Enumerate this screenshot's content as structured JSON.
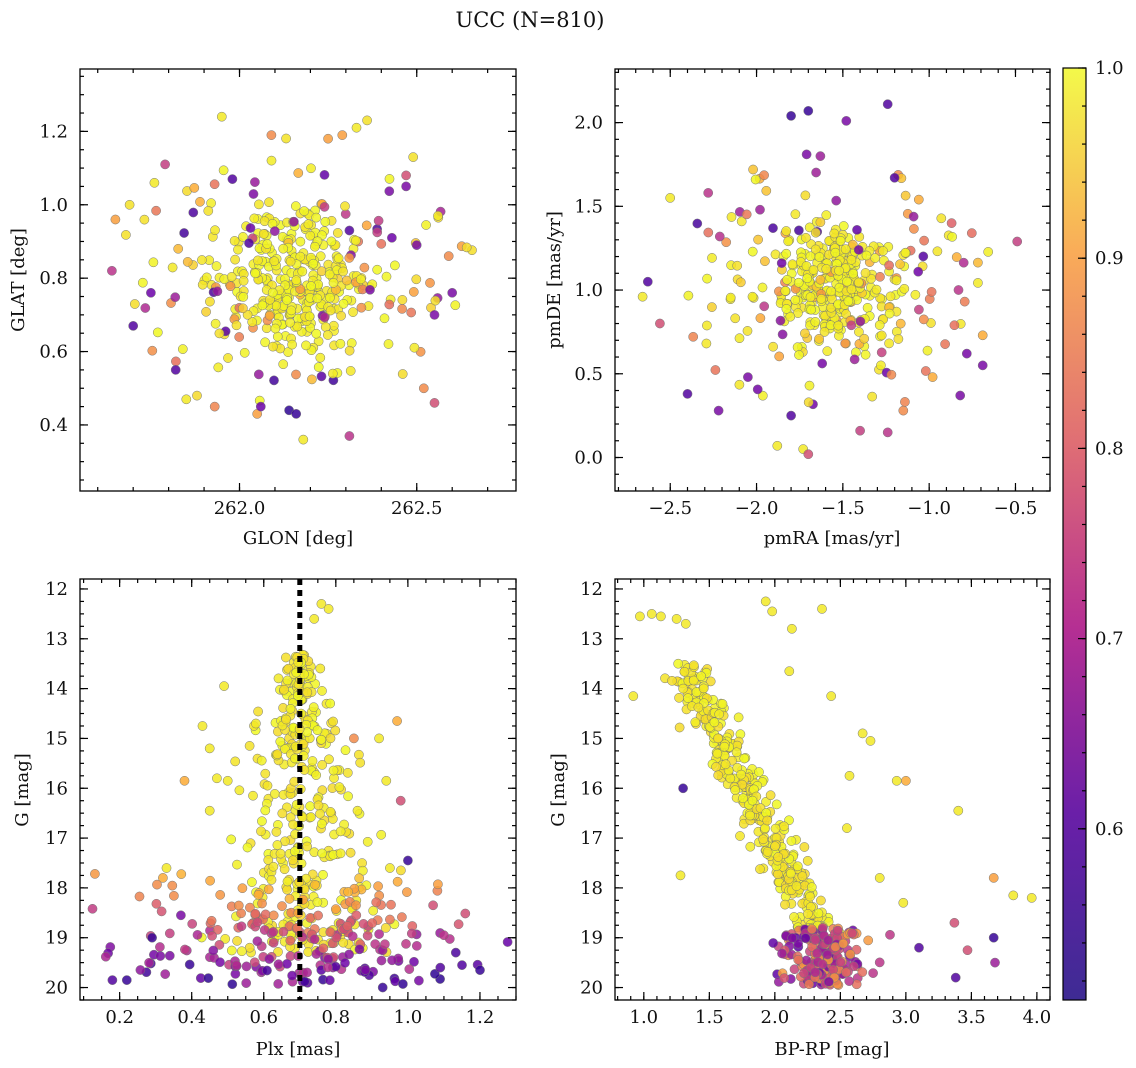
{
  "title": "UCC (N=810)",
  "colors": {
    "colormap": [
      "#0d0887",
      "#6a00a8",
      "#b12a90",
      "#e16462",
      "#fca636",
      "#f0f921"
    ],
    "marker_edge": "#777777",
    "vline": "#000000"
  },
  "chart_data": [
    {
      "type": "scatter",
      "id": "glon-glat",
      "xlabel": "GLON [deg]",
      "ylabel": "GLAT [deg]",
      "xlim": [
        261.55,
        262.78
      ],
      "ylim": [
        0.22,
        1.37
      ],
      "xticks": [
        {
          "v": 262.0,
          "label": "262.0"
        },
        {
          "v": 262.5,
          "label": "262.5"
        }
      ],
      "yticks": [
        {
          "v": 0.4,
          "label": "0.4"
        },
        {
          "v": 0.6,
          "label": "0.6"
        },
        {
          "v": 0.8,
          "label": "0.8"
        },
        {
          "v": 1.0,
          "label": "1.0"
        },
        {
          "v": 1.2,
          "label": "1.2"
        }
      ],
      "minor_x": 0.1,
      "minor_y": 0.05,
      "invert_y": false,
      "outliers": [
        [
          261.95,
          1.24,
          0.98
        ],
        [
          262.09,
          1.19,
          0.85
        ],
        [
          262.25,
          1.18,
          0.88
        ],
        [
          262.33,
          1.21,
          0.98
        ],
        [
          262.36,
          1.23,
          0.97
        ],
        [
          262.29,
          1.19,
          0.88
        ],
        [
          261.79,
          1.11,
          0.72
        ],
        [
          261.69,
          1.0,
          0.97
        ],
        [
          261.76,
          1.06,
          0.98
        ],
        [
          261.65,
          0.96,
          0.88
        ],
        [
          261.75,
          0.76,
          0.58
        ],
        [
          261.7,
          0.67,
          0.55
        ],
        [
          261.64,
          0.82,
          0.7
        ],
        [
          261.85,
          0.47,
          0.98
        ],
        [
          261.88,
          0.48,
          0.96
        ],
        [
          261.93,
          0.45,
          0.84
        ],
        [
          262.05,
          0.43,
          0.88
        ],
        [
          262.14,
          0.44,
          0.5
        ],
        [
          262.16,
          0.43,
          0.52
        ],
        [
          262.18,
          0.36,
          0.98
        ],
        [
          262.31,
          0.37,
          0.7
        ],
        [
          262.55,
          0.46,
          0.75
        ],
        [
          262.6,
          0.76,
          0.6
        ],
        [
          262.59,
          0.86,
          0.85
        ],
        [
          262.56,
          0.97,
          0.98
        ],
        [
          262.47,
          1.05,
          0.6
        ],
        [
          262.49,
          1.13,
          0.97
        ],
        [
          262.5,
          0.89,
          0.6
        ],
        [
          262.43,
          0.91,
          0.58
        ],
        [
          262.55,
          0.7,
          0.6
        ],
        [
          261.82,
          0.55,
          0.55
        ],
        [
          262.06,
          0.45,
          0.58
        ],
        [
          262.52,
          0.5,
          0.85
        ],
        [
          261.98,
          1.07,
          0.55
        ],
        [
          262.31,
          0.93,
          0.55
        ],
        [
          262.47,
          1.08,
          0.75
        ]
      ]
    },
    {
      "type": "scatter",
      "id": "pmra-pmde",
      "xlabel": "pmRA [mas/yr]",
      "ylabel": "pmDE [mas/yr]",
      "xlim": [
        -2.82,
        -0.3
      ],
      "ylim": [
        -0.2,
        2.32
      ],
      "xticks": [
        {
          "v": -2.5,
          "label": "−2.5"
        },
        {
          "v": -2.0,
          "label": "−2.0"
        },
        {
          "v": -1.5,
          "label": "−1.5"
        },
        {
          "v": -1.0,
          "label": "−1.0"
        },
        {
          "v": -0.5,
          "label": "−0.5"
        }
      ],
      "yticks": [
        {
          "v": 0.0,
          "label": "0.0"
        },
        {
          "v": 0.5,
          "label": "0.5"
        },
        {
          "v": 1.0,
          "label": "1.0"
        },
        {
          "v": 1.5,
          "label": "1.5"
        },
        {
          "v": 2.0,
          "label": "2.0"
        }
      ],
      "minor_x": 0.1,
      "minor_y": 0.1,
      "invert_y": false,
      "outliers": [
        [
          -1.8,
          2.04,
          0.52
        ],
        [
          -1.7,
          2.07,
          0.52
        ],
        [
          -1.24,
          2.11,
          0.55
        ],
        [
          -1.48,
          2.01,
          0.6
        ],
        [
          -1.71,
          1.81,
          0.6
        ],
        [
          -1.63,
          1.8,
          0.65
        ],
        [
          -2.02,
          1.72,
          0.93
        ],
        [
          -2.5,
          1.55,
          0.98
        ],
        [
          -2.63,
          1.05,
          0.55
        ],
        [
          -2.66,
          0.96,
          0.98
        ],
        [
          -2.56,
          0.8,
          0.75
        ],
        [
          -2.4,
          0.38,
          0.55
        ],
        [
          -2.22,
          0.28,
          0.6
        ],
        [
          -1.88,
          0.07,
          0.98
        ],
        [
          -1.73,
          0.05,
          0.98
        ],
        [
          -1.7,
          0.02,
          0.75
        ],
        [
          -1.4,
          0.16,
          0.72
        ],
        [
          -1.24,
          0.15,
          0.7
        ],
        [
          -0.49,
          1.29,
          0.72
        ],
        [
          -0.69,
          0.73,
          0.9
        ],
        [
          -0.69,
          0.55,
          0.6
        ],
        [
          -0.82,
          0.37,
          0.6
        ],
        [
          -0.83,
          1.0,
          0.7
        ],
        [
          -0.87,
          1.4,
          0.78
        ],
        [
          -1.06,
          1.54,
          0.9
        ],
        [
          -1.98,
          1.48,
          0.65
        ],
        [
          -2.28,
          1.58,
          0.7
        ],
        [
          -2.05,
          0.48,
          0.6
        ],
        [
          -0.98,
          0.48,
          0.9
        ],
        [
          -1.15,
          0.28,
          0.85
        ],
        [
          -1.8,
          0.25,
          0.55
        ],
        [
          -1.2,
          1.67,
          0.55
        ]
      ]
    },
    {
      "type": "scatter",
      "id": "plx-g",
      "xlabel": "Plx [mas]",
      "ylabel": "G [mag]",
      "xlim": [
        0.09,
        1.3
      ],
      "ylim": [
        11.8,
        20.25
      ],
      "xticks": [
        {
          "v": 0.2,
          "label": "0.2"
        },
        {
          "v": 0.4,
          "label": "0.4"
        },
        {
          "v": 0.6,
          "label": "0.6"
        },
        {
          "v": 0.8,
          "label": "0.8"
        },
        {
          "v": 1.0,
          "label": "1.0"
        },
        {
          "v": 1.2,
          "label": "1.2"
        }
      ],
      "yticks": [
        {
          "v": 12,
          "label": "12"
        },
        {
          "v": 13,
          "label": "13"
        },
        {
          "v": 14,
          "label": "14"
        },
        {
          "v": 15,
          "label": "15"
        },
        {
          "v": 16,
          "label": "16"
        },
        {
          "v": 17,
          "label": "17"
        },
        {
          "v": 18,
          "label": "18"
        },
        {
          "v": 19,
          "label": "19"
        },
        {
          "v": 20,
          "label": "20"
        }
      ],
      "minor_x": 0.05,
      "minor_y": 0.25,
      "invert_y": true,
      "vline": 0.7,
      "outliers": [
        [
          0.76,
          12.3,
          0.98
        ],
        [
          0.78,
          12.4,
          0.98
        ],
        [
          0.74,
          12.6,
          0.98
        ],
        [
          0.49,
          13.95,
          0.98
        ],
        [
          0.43,
          14.75,
          0.98
        ],
        [
          0.97,
          14.65,
          0.9
        ],
        [
          0.45,
          15.2,
          0.98
        ],
        [
          0.47,
          15.8,
          0.98
        ],
        [
          0.38,
          15.85,
          0.9
        ],
        [
          0.5,
          15.85,
          0.98
        ],
        [
          0.98,
          16.25,
          0.75
        ],
        [
          0.57,
          16.15,
          0.98
        ],
        [
          0.45,
          16.45,
          0.98
        ],
        [
          1.0,
          17.45,
          0.52
        ],
        [
          0.33,
          17.6,
          0.98
        ],
        [
          0.32,
          17.8,
          0.9
        ],
        [
          1.09,
          19.6,
          0.55
        ],
        [
          1.15,
          19.55,
          0.55
        ],
        [
          1.2,
          19.65,
          0.52
        ],
        [
          0.18,
          19.85,
          0.55
        ],
        [
          0.22,
          19.85,
          0.52
        ],
        [
          0.93,
          20.0,
          0.52
        ],
        [
          0.29,
          19.0,
          0.52
        ],
        [
          1.07,
          18.35,
          0.75
        ],
        [
          0.94,
          15.85,
          0.98
        ],
        [
          0.95,
          17.6,
          0.98
        ],
        [
          0.86,
          16.45,
          0.98
        ],
        [
          0.92,
          15.0,
          0.98
        ],
        [
          0.85,
          15.0,
          0.85
        ],
        [
          0.37,
          18.55,
          0.6
        ],
        [
          1.1,
          18.95,
          0.7
        ]
      ]
    },
    {
      "type": "scatter",
      "id": "bprp-g",
      "xlabel": "BP-RP [mag]",
      "ylabel": "G [mag]",
      "xlim": [
        0.78,
        4.1
      ],
      "ylim": [
        11.8,
        20.25
      ],
      "xticks": [
        {
          "v": 1.0,
          "label": "1.0"
        },
        {
          "v": 1.5,
          "label": "1.5"
        },
        {
          "v": 2.0,
          "label": "2.0"
        },
        {
          "v": 2.5,
          "label": "2.5"
        },
        {
          "v": 3.0,
          "label": "3.0"
        },
        {
          "v": 3.5,
          "label": "3.5"
        },
        {
          "v": 4.0,
          "label": "4.0"
        }
      ],
      "yticks": [
        {
          "v": 12,
          "label": "12"
        },
        {
          "v": 13,
          "label": "13"
        },
        {
          "v": 14,
          "label": "14"
        },
        {
          "v": 15,
          "label": "15"
        },
        {
          "v": 16,
          "label": "16"
        },
        {
          "v": 17,
          "label": "17"
        },
        {
          "v": 18,
          "label": "18"
        },
        {
          "v": 19,
          "label": "19"
        },
        {
          "v": 20,
          "label": "20"
        }
      ],
      "minor_x": 0.1,
      "minor_y": 0.25,
      "invert_y": true,
      "outliers": [
        [
          0.97,
          12.55,
          0.98
        ],
        [
          1.06,
          12.5,
          0.98
        ],
        [
          1.13,
          12.55,
          0.98
        ],
        [
          1.25,
          12.6,
          0.98
        ],
        [
          1.32,
          12.7,
          0.98
        ],
        [
          1.93,
          12.25,
          0.98
        ],
        [
          1.98,
          12.45,
          0.98
        ],
        [
          2.13,
          12.8,
          0.98
        ],
        [
          2.36,
          12.4,
          0.98
        ],
        [
          0.92,
          14.15,
          0.98
        ],
        [
          2.11,
          13.65,
          0.98
        ],
        [
          1.3,
          16.0,
          0.52
        ],
        [
          1.28,
          17.75,
          0.98
        ],
        [
          2.43,
          14.15,
          0.98
        ],
        [
          2.67,
          14.9,
          0.98
        ],
        [
          2.73,
          15.05,
          0.98
        ],
        [
          3.0,
          15.85,
          0.9
        ],
        [
          2.93,
          15.85,
          0.98
        ],
        [
          3.4,
          16.45,
          0.98
        ],
        [
          3.67,
          17.8,
          0.88
        ],
        [
          3.82,
          18.15,
          0.98
        ],
        [
          3.96,
          18.2,
          0.98
        ],
        [
          3.37,
          18.7,
          0.75
        ],
        [
          3.47,
          19.25,
          0.75
        ],
        [
          3.67,
          19.0,
          0.52
        ],
        [
          3.68,
          19.5,
          0.65
        ],
        [
          3.38,
          19.8,
          0.55
        ],
        [
          3.1,
          19.2,
          0.55
        ],
        [
          2.8,
          17.8,
          0.98
        ],
        [
          2.57,
          15.75,
          0.98
        ],
        [
          2.55,
          16.8,
          0.98
        ],
        [
          2.98,
          18.3,
          0.98
        ]
      ]
    }
  ],
  "colorbar": {
    "vmin": 0.51,
    "vmax": 1.0,
    "ticks": [
      {
        "v": 0.6,
        "label": "0.6"
      },
      {
        "v": 0.7,
        "label": "0.7"
      },
      {
        "v": 0.8,
        "label": "0.8"
      },
      {
        "v": 0.9,
        "label": "0.9"
      },
      {
        "v": 1.0,
        "label": "1.0"
      }
    ]
  }
}
